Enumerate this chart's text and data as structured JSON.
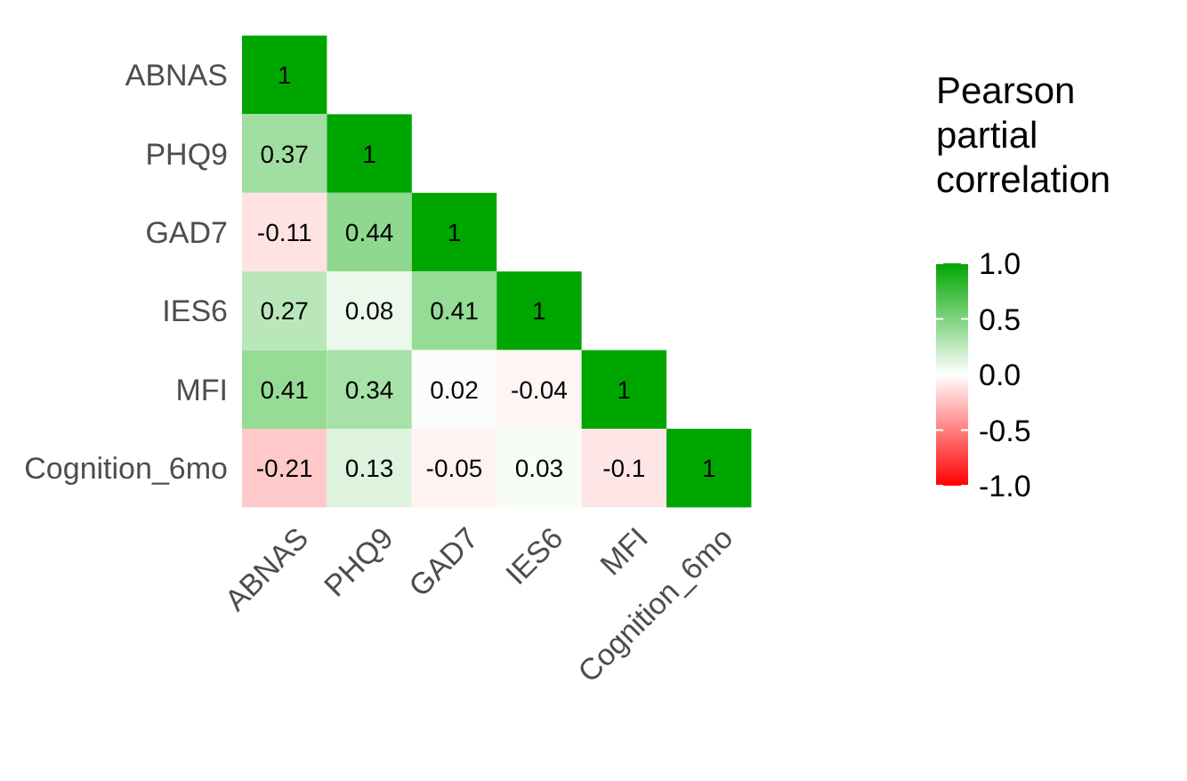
{
  "chart_data": {
    "type": "heatmap",
    "categories": [
      "ABNAS",
      "PHQ9",
      "GAD7",
      "IES6",
      "MFI",
      "Cognition_6mo"
    ],
    "y_categories": [
      "ABNAS",
      "PHQ9",
      "GAD7",
      "IES6",
      "MFI",
      "Cognition_6mo"
    ],
    "cells": [
      [
        1,
        null,
        null,
        null,
        null,
        null
      ],
      [
        0.37,
        1,
        null,
        null,
        null,
        null
      ],
      [
        -0.11,
        0.44,
        1,
        null,
        null,
        null
      ],
      [
        0.27,
        0.08,
        0.41,
        1,
        null,
        null
      ],
      [
        0.41,
        0.34,
        0.02,
        -0.04,
        1,
        null
      ],
      [
        -0.21,
        0.13,
        -0.05,
        0.03,
        -0.1,
        1
      ]
    ],
    "data_labels": true,
    "clabel": "Pearson partial correlation",
    "clim": [
      -1,
      1
    ],
    "cticks": [
      {
        "value": -1,
        "label": "-1.0"
      },
      {
        "value": -0.5,
        "label": "-0.5"
      },
      {
        "value": 0,
        "label": "0.0"
      },
      {
        "value": 0.5,
        "label": "0.5"
      },
      {
        "value": 1,
        "label": "1.0"
      }
    ]
  }
}
